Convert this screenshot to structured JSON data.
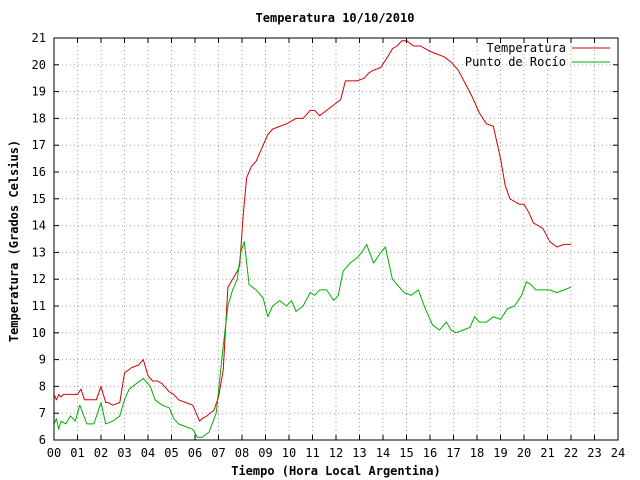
{
  "chart_data": {
    "type": "line",
    "title": "Temperatura 10/10/2010",
    "xlabel": "Tiempo (Hora Local Argentina)",
    "ylabel": "Temperatura (Grados Celsius)",
    "xlim": [
      0,
      24
    ],
    "ylim": [
      6,
      21
    ],
    "xticks": [
      "00",
      "01",
      "02",
      "03",
      "04",
      "05",
      "06",
      "07",
      "08",
      "09",
      "10",
      "11",
      "12",
      "13",
      "14",
      "15",
      "16",
      "17",
      "18",
      "19",
      "20",
      "21",
      "22",
      "23",
      "24"
    ],
    "yticks": [
      "6",
      "7",
      "8",
      "9",
      "10",
      "11",
      "12",
      "13",
      "14",
      "15",
      "16",
      "17",
      "18",
      "19",
      "20",
      "21"
    ],
    "grid": true,
    "legend_position": "top-right",
    "series": [
      {
        "name": "Temperatura",
        "color": "#d40000",
        "x": [
          0.0,
          0.1,
          0.2,
          0.3,
          0.4,
          0.6,
          0.8,
          1.0,
          1.15,
          1.3,
          1.5,
          1.8,
          2.0,
          2.2,
          2.3,
          2.5,
          2.8,
          3.0,
          3.3,
          3.6,
          3.8,
          4.0,
          4.2,
          4.4,
          4.6,
          4.9,
          5.1,
          5.3,
          5.6,
          5.9,
          6.2,
          6.3,
          6.5,
          6.8,
          7.0,
          7.2,
          7.4,
          7.6,
          7.8,
          7.9,
          8.05,
          8.2,
          8.4,
          8.6,
          8.9,
          9.1,
          9.3,
          9.6,
          9.9,
          10.1,
          10.3,
          10.6,
          10.9,
          11.1,
          11.3,
          11.6,
          11.9,
          12.2,
          12.4,
          12.6,
          12.9,
          13.2,
          13.4,
          13.6,
          13.9,
          14.2,
          14.4,
          14.6,
          14.8,
          15.0,
          15.3,
          15.6,
          15.8,
          16.0,
          16.3,
          16.6,
          16.9,
          17.2,
          17.5,
          17.8,
          18.1,
          18.4,
          18.7,
          19.0,
          19.2,
          19.4,
          19.6,
          19.8,
          20.0,
          20.2,
          20.4,
          20.6,
          20.8,
          21.1,
          21.4,
          21.7,
          22.0
        ],
        "values": [
          7.7,
          7.5,
          7.7,
          7.6,
          7.7,
          7.7,
          7.7,
          7.7,
          7.9,
          7.5,
          7.5,
          7.5,
          8.0,
          7.4,
          7.4,
          7.3,
          7.4,
          8.5,
          8.7,
          8.8,
          9.0,
          8.4,
          8.2,
          8.2,
          8.1,
          7.8,
          7.7,
          7.5,
          7.4,
          7.3,
          6.7,
          6.8,
          6.9,
          7.1,
          7.6,
          8.6,
          11.7,
          12.0,
          12.3,
          12.5,
          14.4,
          15.8,
          16.2,
          16.4,
          17.0,
          17.4,
          17.6,
          17.7,
          17.8,
          17.9,
          18.0,
          18.0,
          18.3,
          18.3,
          18.1,
          18.3,
          18.5,
          18.7,
          19.4,
          19.4,
          19.4,
          19.5,
          19.7,
          19.8,
          19.9,
          20.3,
          20.6,
          20.7,
          20.9,
          20.9,
          20.7,
          20.7,
          20.6,
          20.5,
          20.4,
          20.3,
          20.1,
          19.8,
          19.3,
          18.8,
          18.2,
          17.8,
          17.7,
          16.5,
          15.5,
          15.0,
          14.9,
          14.8,
          14.8,
          14.5,
          14.1,
          14.0,
          13.9,
          13.4,
          13.2,
          13.3,
          13.3
        ]
      },
      {
        "name": "Punto de Rocío",
        "color": "#00b000",
        "x": [
          0.0,
          0.1,
          0.2,
          0.3,
          0.5,
          0.7,
          0.9,
          1.1,
          1.4,
          1.7,
          2.0,
          2.2,
          2.5,
          2.8,
          3.0,
          3.2,
          3.5,
          3.8,
          4.1,
          4.3,
          4.6,
          4.9,
          5.1,
          5.3,
          5.6,
          5.9,
          6.1,
          6.3,
          6.6,
          6.9,
          7.2,
          7.4,
          7.6,
          7.8,
          7.95,
          8.1,
          8.3,
          8.6,
          8.9,
          9.1,
          9.3,
          9.6,
          9.9,
          10.1,
          10.3,
          10.6,
          10.9,
          11.1,
          11.3,
          11.6,
          11.9,
          12.1,
          12.3,
          12.6,
          12.9,
          13.1,
          13.3,
          13.6,
          13.9,
          14.1,
          14.4,
          14.7,
          14.9,
          15.2,
          15.5,
          15.8,
          16.1,
          16.4,
          16.7,
          16.9,
          17.1,
          17.4,
          17.7,
          17.9,
          18.1,
          18.4,
          18.7,
          19.0,
          19.3,
          19.6,
          19.9,
          20.1,
          20.3,
          20.5,
          20.8,
          21.1,
          21.4,
          21.7,
          22.0
        ],
        "values": [
          6.6,
          6.8,
          6.4,
          6.7,
          6.6,
          6.9,
          6.7,
          7.3,
          6.6,
          6.6,
          7.4,
          6.6,
          6.7,
          6.9,
          7.5,
          7.9,
          8.1,
          8.3,
          8.0,
          7.5,
          7.3,
          7.2,
          6.8,
          6.6,
          6.5,
          6.4,
          6.1,
          6.1,
          6.3,
          7.0,
          9.5,
          11.0,
          11.6,
          12.0,
          13.0,
          13.4,
          11.8,
          11.6,
          11.3,
          10.6,
          11.0,
          11.2,
          11.0,
          11.2,
          10.8,
          11.0,
          11.5,
          11.4,
          11.6,
          11.6,
          11.2,
          11.4,
          12.3,
          12.6,
          12.8,
          13.0,
          13.3,
          12.6,
          13.0,
          13.2,
          12.0,
          11.7,
          11.5,
          11.4,
          11.6,
          10.9,
          10.3,
          10.1,
          10.4,
          10.1,
          10.0,
          10.1,
          10.2,
          10.6,
          10.4,
          10.4,
          10.6,
          10.5,
          10.9,
          11.0,
          11.4,
          11.9,
          11.8,
          11.6,
          11.6,
          11.6,
          11.5,
          11.6,
          11.7
        ]
      }
    ]
  }
}
